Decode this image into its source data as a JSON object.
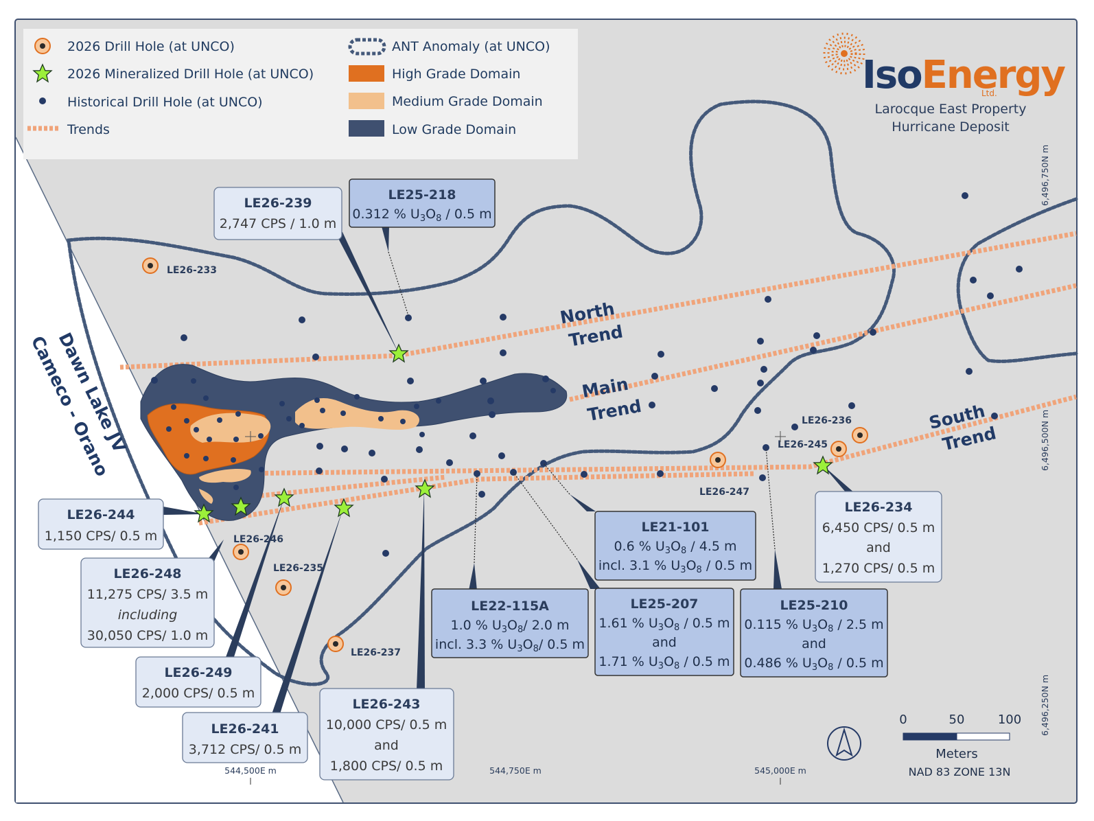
{
  "legend": {
    "drill_hole": "2026 Drill Hole (at UNCO)",
    "mineralized_hole": "2026 Mineralized Drill Hole (at UNCO)",
    "historical_hole": "Historical Drill Hole (at UNCO)",
    "trends": "Trends",
    "ant_anomaly": "ANT Anomaly (at UNCO)",
    "high_grade": "High Grade Domain",
    "medium_grade": "Medium Grade Domain",
    "low_grade": "Low Grade Domain"
  },
  "company": {
    "logo_iso": "Iso",
    "logo_energy": "Energy",
    "logo_ltd": "Ltd.",
    "property": "Larocque East Property",
    "deposit": "Hurricane Deposit"
  },
  "trends": {
    "north_1": "North",
    "north_2": "Trend",
    "main_1": "Main",
    "main_2": "Trend",
    "south_1": "South",
    "south_2": "Trend"
  },
  "jv": {
    "line1": "Dawn Lake JV",
    "line2": "Cameco - Orano"
  },
  "hole_labels": {
    "le26_233": "LE26-233",
    "le26_236": "LE26-236",
    "le26_245": "LE26-245",
    "le26_247": "LE26-247",
    "le26_246": "LE26-246",
    "le26_235": "LE26-235",
    "le26_237": "LE26-237"
  },
  "callouts": {
    "le26_239": {
      "title": "LE26-239",
      "line1": "2,747 CPS / 1.0 m"
    },
    "le25_218": {
      "title": "LE25-218",
      "pre": "0.312 % U",
      "sub1": "3",
      "mid": "O",
      "sub2": "8",
      "post": " / 0.5 m"
    },
    "le26_244": {
      "title": "LE26-244",
      "line1": "1,150 CPS/ 0.5 m"
    },
    "le26_248": {
      "title": "LE26-248",
      "line1": "11,275 CPS/ 3.5 m",
      "line2": "including",
      "line3": "30,050 CPS/ 1.0 m"
    },
    "le26_249": {
      "title": "LE26-249",
      "line1": "2,000 CPS/ 0.5 m"
    },
    "le26_241": {
      "title": "LE26-241",
      "line1": "3,712 CPS/ 0.5 m"
    },
    "le26_243": {
      "title": "LE26-243",
      "line1": "10,000 CPS/ 0.5 m",
      "line2": "and",
      "line3": "1,800 CPS/ 0.5 m"
    },
    "le22_115a": {
      "title": "LE22-115A",
      "l1_pre": "1.0 % U",
      "l1_post": "/ 2.0 m",
      "l2_pre": "incl. 3.3 % U",
      "l2_post": "/ 0.5 m"
    },
    "le21_101": {
      "title": "LE21-101",
      "l1_pre": "0.6 % U",
      "l1_post": " / 4.5 m",
      "l2_pre": "incl. 3.1 % U",
      "l2_post": " / 0.5 m"
    },
    "le25_207": {
      "title": "LE25-207",
      "l1_pre": "1.61 % U",
      "l1_post": " / 0.5 m",
      "and": "and",
      "l2_pre": "1.71 % U",
      "l2_post": " / 0.5 m"
    },
    "le25_210": {
      "title": "LE25-210",
      "l1_pre": "0.115 % U",
      "l1_post": " / 2.5 m",
      "and": "and",
      "l2_pre": "0.486 % U",
      "l2_post": " / 0.5 m"
    },
    "le26_234": {
      "title": "LE26-234",
      "line1": "6,450 CPS/ 0.5 m",
      "line2": "and",
      "line3": "1,270 CPS/ 0.5 m"
    },
    "u_sub": "3",
    "o": "O",
    "o_sub": "8"
  },
  "coordinates": {
    "easting_1": "544,500E m",
    "easting_2": "544,750E m",
    "easting_3": "545,000E m",
    "northing_1": "6,496,750N m",
    "northing_2": "6,496,500N m",
    "northing_3": "6,496,250N m"
  },
  "scale": {
    "zero": "0",
    "fifty": "50",
    "hundred": "100",
    "units": "Meters",
    "projection": "NAD 83 ZONE 13N"
  },
  "colors": {
    "map_bg": "#dcdcdc",
    "west_bg": "#ffffff",
    "low_grade": "#3f5070",
    "medium_grade": "#f2c08c",
    "high_grade": "#e07020",
    "trend": "#f0a47a",
    "anomaly": "#44597a",
    "hole": "#253a66",
    "star": "#9cf03a",
    "callout_light": "#e2e9f5",
    "callout_dark": "#b4c6e7",
    "accent": "#e07020"
  }
}
